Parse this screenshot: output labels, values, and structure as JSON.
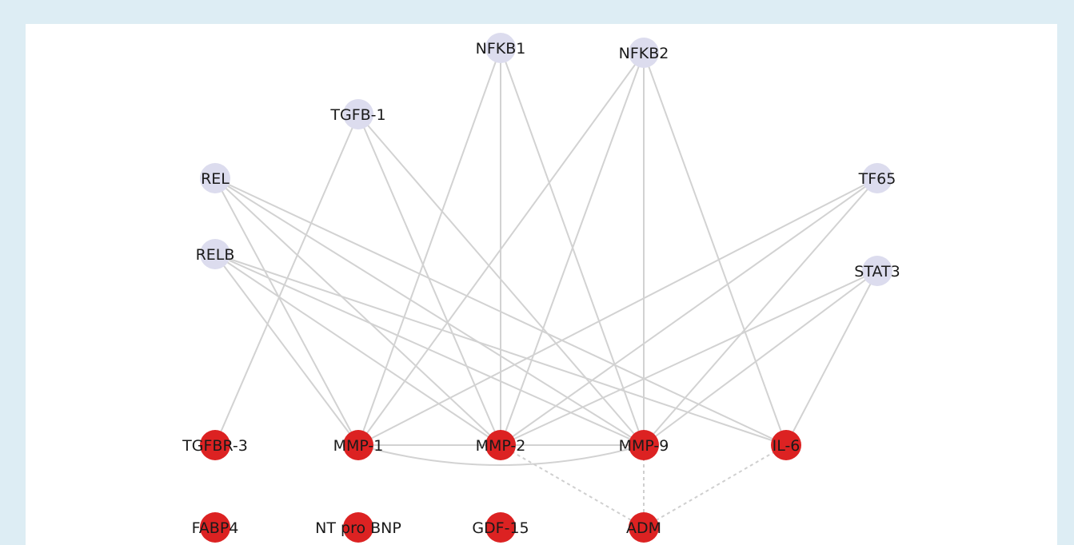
{
  "colors": {
    "page_background": "#ddedf4",
    "panel_background": "#ffffff",
    "regulator_node": "#dcdcee",
    "biomarker_node": "#dc2222",
    "edge": "#d2d2d2"
  },
  "nodes": [
    {
      "id": "NFKB1",
      "label": "NFKB1",
      "group": "regulator"
    },
    {
      "id": "NFKB2",
      "label": "NFKB2",
      "group": "regulator"
    },
    {
      "id": "TGFB-1",
      "label": "TGFB-1",
      "group": "regulator"
    },
    {
      "id": "REL",
      "label": "REL",
      "group": "regulator"
    },
    {
      "id": "TF65",
      "label": "TF65",
      "group": "regulator"
    },
    {
      "id": "RELB",
      "label": "RELB",
      "group": "regulator"
    },
    {
      "id": "STAT3",
      "label": "STAT3",
      "group": "regulator"
    },
    {
      "id": "TGFBR-3",
      "label": "TGFBR-3",
      "group": "biomarker"
    },
    {
      "id": "MMP-1",
      "label": "MMP-1",
      "group": "biomarker"
    },
    {
      "id": "MMP-2",
      "label": "MMP-2",
      "group": "biomarker"
    },
    {
      "id": "MMP-9",
      "label": "MMP-9",
      "group": "biomarker"
    },
    {
      "id": "IL-6",
      "label": "IL-6",
      "group": "biomarker"
    },
    {
      "id": "FABP4",
      "label": "FABP4",
      "group": "biomarker"
    },
    {
      "id": "NT pro BNP",
      "label": "NT pro BNP",
      "group": "biomarker"
    },
    {
      "id": "GDF-15",
      "label": "GDF-15",
      "group": "biomarker"
    },
    {
      "id": "ADM",
      "label": "ADM",
      "group": "biomarker"
    }
  ],
  "edges": [
    {
      "source": "NFKB1",
      "target": "MMP-1",
      "style": "solid"
    },
    {
      "source": "NFKB1",
      "target": "MMP-2",
      "style": "solid"
    },
    {
      "source": "NFKB1",
      "target": "MMP-9",
      "style": "solid"
    },
    {
      "source": "NFKB2",
      "target": "MMP-1",
      "style": "solid"
    },
    {
      "source": "NFKB2",
      "target": "MMP-2",
      "style": "solid"
    },
    {
      "source": "NFKB2",
      "target": "MMP-9",
      "style": "solid"
    },
    {
      "source": "NFKB2",
      "target": "IL-6",
      "style": "solid"
    },
    {
      "source": "TGFB-1",
      "target": "TGFBR-3",
      "style": "solid"
    },
    {
      "source": "TGFB-1",
      "target": "MMP-2",
      "style": "solid"
    },
    {
      "source": "TGFB-1",
      "target": "MMP-9",
      "style": "solid"
    },
    {
      "source": "REL",
      "target": "MMP-1",
      "style": "solid"
    },
    {
      "source": "REL",
      "target": "MMP-2",
      "style": "solid"
    },
    {
      "source": "REL",
      "target": "MMP-9",
      "style": "solid"
    },
    {
      "source": "REL",
      "target": "IL-6",
      "style": "solid"
    },
    {
      "source": "RELB",
      "target": "MMP-1",
      "style": "solid"
    },
    {
      "source": "RELB",
      "target": "MMP-2",
      "style": "solid"
    },
    {
      "source": "RELB",
      "target": "MMP-9",
      "style": "solid"
    },
    {
      "source": "RELB",
      "target": "IL-6",
      "style": "solid"
    },
    {
      "source": "TF65",
      "target": "MMP-1",
      "style": "solid"
    },
    {
      "source": "TF65",
      "target": "MMP-2",
      "style": "solid"
    },
    {
      "source": "TF65",
      "target": "MMP-9",
      "style": "solid"
    },
    {
      "source": "STAT3",
      "target": "MMP-2",
      "style": "solid"
    },
    {
      "source": "STAT3",
      "target": "MMP-9",
      "style": "solid"
    },
    {
      "source": "STAT3",
      "target": "IL-6",
      "style": "solid"
    },
    {
      "source": "MMP-1",
      "target": "MMP-2",
      "style": "solid"
    },
    {
      "source": "MMP-2",
      "target": "MMP-9",
      "style": "solid"
    },
    {
      "source": "MMP-1",
      "target": "MMP-9",
      "style": "solid-curved"
    },
    {
      "source": "MMP-2",
      "target": "ADM",
      "style": "dashed"
    },
    {
      "source": "MMP-9",
      "target": "ADM",
      "style": "dashed"
    },
    {
      "source": "IL-6",
      "target": "ADM",
      "style": "dashed"
    }
  ]
}
